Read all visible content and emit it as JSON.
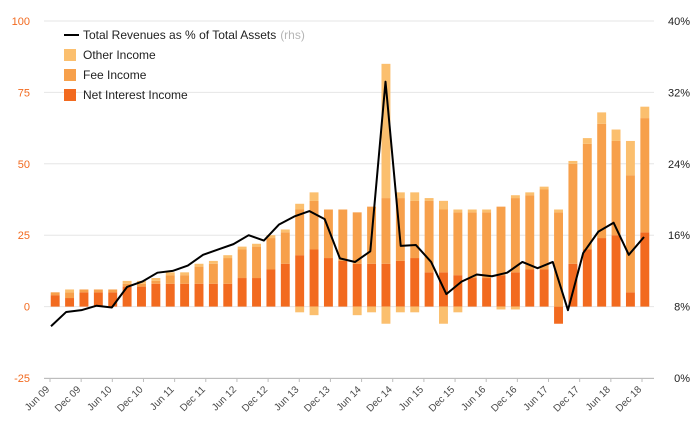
{
  "chart_data": {
    "type": "bar",
    "title": "",
    "xlabel": "",
    "ylabel": "",
    "ylim": [
      -25,
      100
    ],
    "ylim_right": [
      0,
      40
    ],
    "left_ticks": [
      "100",
      "75",
      "50",
      "25",
      "0",
      "-25"
    ],
    "right_ticks": [
      "40%",
      "32%",
      "24%",
      "16%",
      "8%",
      "0%"
    ],
    "grid": true,
    "legend_position": "top-left",
    "colors": {
      "net_interest_income": "#f26a1f",
      "fee_income": "#f7a04b",
      "other_income": "#fbbf6e",
      "revenues_line": "#000000",
      "left_tick_text": "#f26a1f",
      "grid": "#e6e6e6"
    },
    "legend": {
      "line_label": "Total Revenues as % of Total Assets",
      "line_suffix": "(rhs)",
      "other_label": "Other Income",
      "fee_label": "Fee Income",
      "nii_label": "Net Interest Income"
    },
    "x_tick_labels": [
      "Jun 09",
      "Dec 09",
      "Jun 10",
      "Dec 10",
      "Jun 11",
      "Dec 11",
      "Jun 12",
      "Dec 12",
      "Jun 13",
      "Dec 13",
      "Jun 14",
      "Dec 14",
      "Jun 15",
      "Dec 15",
      "Jun 16",
      "Dec 16",
      "Jun 17",
      "Dec 17",
      "Jun 18",
      "Dec 18"
    ],
    "series": [
      {
        "name": "Net Interest Income",
        "axis": "left",
        "values": [
          4,
          3,
          5,
          5,
          5,
          7,
          7,
          8,
          8,
          8,
          8,
          8,
          8,
          10,
          10,
          13,
          15,
          18,
          20,
          17,
          16,
          15,
          15,
          15,
          16,
          17,
          12,
          12,
          11,
          10,
          10,
          11,
          12,
          13,
          13,
          -6,
          15,
          20,
          24,
          25,
          5,
          26
        ]
      },
      {
        "name": "Fee Income",
        "axis": "left",
        "values": [
          1,
          2,
          1,
          1,
          1,
          1,
          1,
          1,
          3,
          3,
          6,
          7,
          9,
          10,
          11,
          11,
          11,
          16,
          17,
          17,
          18,
          18,
          20,
          23,
          22,
          20,
          25,
          25,
          22,
          23,
          23,
          24,
          26,
          26,
          28,
          33,
          35,
          37,
          40,
          33,
          41,
          40
        ]
      },
      {
        "name": "Other Income",
        "axis": "left",
        "values": [
          0,
          1,
          0,
          0,
          0,
          1,
          1,
          1,
          1,
          1,
          1,
          1,
          1,
          1,
          1,
          1,
          1,
          2,
          3,
          0,
          0,
          0,
          0,
          47,
          2,
          3,
          1,
          -3,
          1,
          1,
          1,
          0,
          1,
          1,
          1,
          1,
          1,
          2,
          4,
          4,
          12,
          4
        ]
      },
      {
        "name": "Other Income (negative)",
        "axis": "left",
        "values": [
          0,
          0,
          0,
          0,
          0,
          0,
          0,
          0,
          0,
          0,
          0,
          0,
          0,
          0,
          0,
          0,
          0,
          -2,
          -3,
          0,
          0,
          -3,
          -2,
          -6,
          -2,
          -2,
          0,
          -6,
          -2,
          0,
          0,
          -1,
          -1,
          0,
          0,
          0,
          0,
          0,
          0,
          0,
          0,
          0
        ]
      },
      {
        "name": "Total Revenues as % of Total Assets",
        "axis": "right",
        "type": "line",
        "values": [
          5.8,
          7.4,
          7.6,
          8.1,
          7.9,
          10.2,
          10.8,
          11.8,
          12.0,
          12.6,
          13.8,
          14.4,
          15.0,
          16.0,
          15.4,
          17.2,
          18.1,
          18.7,
          17.8,
          13.4,
          13.0,
          14.2,
          33.2,
          14.8,
          14.9,
          13.0,
          9.4,
          10.8,
          11.6,
          11.4,
          11.8,
          13.0,
          12.3,
          13.0,
          7.6,
          14.0,
          16.4,
          17.4,
          13.8,
          15.8
        ]
      }
    ]
  }
}
